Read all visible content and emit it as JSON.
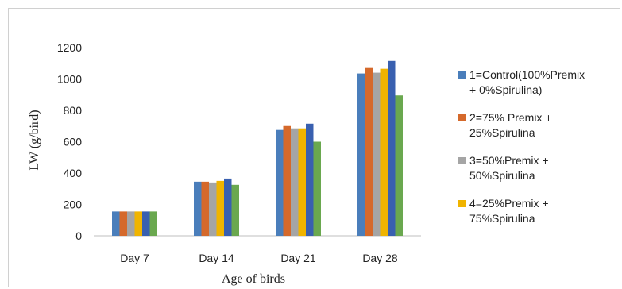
{
  "chart_data": {
    "type": "bar",
    "title": "",
    "xlabel": "Age of birds",
    "ylabel": "LW (g/bird)",
    "ylim": [
      0,
      1200
    ],
    "yticks": [
      0,
      200,
      400,
      600,
      800,
      1000,
      1200
    ],
    "grid": false,
    "legend_position": "right",
    "categories": [
      "Day 7",
      "Day 14",
      "Day 21",
      "Day 28"
    ],
    "series": [
      {
        "name": "1=Control(100%Premix + 0%Spirulina)",
        "color": "#4a7ebb",
        "values": [
          155,
          345,
          675,
          1035
        ]
      },
      {
        "name": "2=75% Premix + 25%Spirulina",
        "color": "#d5692b",
        "values": [
          155,
          345,
          700,
          1070
        ]
      },
      {
        "name": "3=50%Premix + 50%Spirulina",
        "color": "#a5a5a5",
        "values": [
          155,
          340,
          685,
          1040
        ]
      },
      {
        "name": "4=25%Premix + 75%Spirulina",
        "color": "#f0b400",
        "values": [
          155,
          350,
          685,
          1065
        ]
      },
      {
        "name": "",
        "color": "#3960b0",
        "values": [
          155,
          365,
          715,
          1115
        ]
      },
      {
        "name": "",
        "color": "#6aa84f",
        "values": [
          155,
          325,
          600,
          895
        ]
      }
    ],
    "legend_lines": [
      [
        "1=Control(100%Premix",
        "+ 0%Spirulina)"
      ],
      [
        "2=75% Premix +",
        "25%Spirulina"
      ],
      [
        "3=50%Premix +",
        "50%Spirulina"
      ],
      [
        "4=25%Premix +",
        "75%Spirulina"
      ]
    ]
  }
}
